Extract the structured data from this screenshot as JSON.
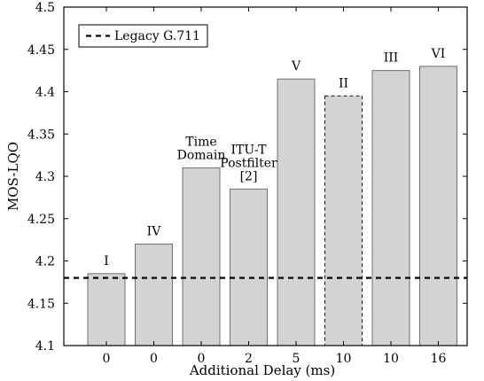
{
  "chart_data": {
    "type": "bar",
    "categories": [
      "0",
      "0",
      "0",
      "2",
      "5",
      "10",
      "10",
      "16"
    ],
    "values": [
      4.185,
      4.22,
      4.31,
      4.285,
      4.415,
      4.395,
      4.425,
      4.43
    ],
    "bar_labels": [
      [
        "I"
      ],
      [
        "IV"
      ],
      [
        "Time",
        "Domain"
      ],
      [
        "ITU-T",
        "Postfilter",
        "[2]"
      ],
      [
        "V"
      ],
      [
        "II"
      ],
      [
        "III"
      ],
      [
        "VI"
      ]
    ],
    "bar_styles": [
      "solid",
      "solid",
      "solid",
      "solid",
      "solid",
      "dashed",
      "solid",
      "solid"
    ],
    "title": "",
    "xlabel": "Additional Delay (ms)",
    "ylabel": "MOS-LQO",
    "ylim": [
      4.1,
      4.5
    ],
    "yticks": [
      "4.1",
      "4.15",
      "4.2",
      "4.25",
      "4.3",
      "4.35",
      "4.4",
      "4.45",
      "4.5"
    ],
    "reference_line": {
      "name": "Legacy G.711",
      "value": 4.18,
      "style": "dashed"
    },
    "legend_position": "top-left",
    "grid": false,
    "colors": {
      "bar_fill": "#d3d3d3",
      "bar_edge": "#6f6f6f",
      "text": "#000000",
      "background": "#ffffff"
    }
  }
}
